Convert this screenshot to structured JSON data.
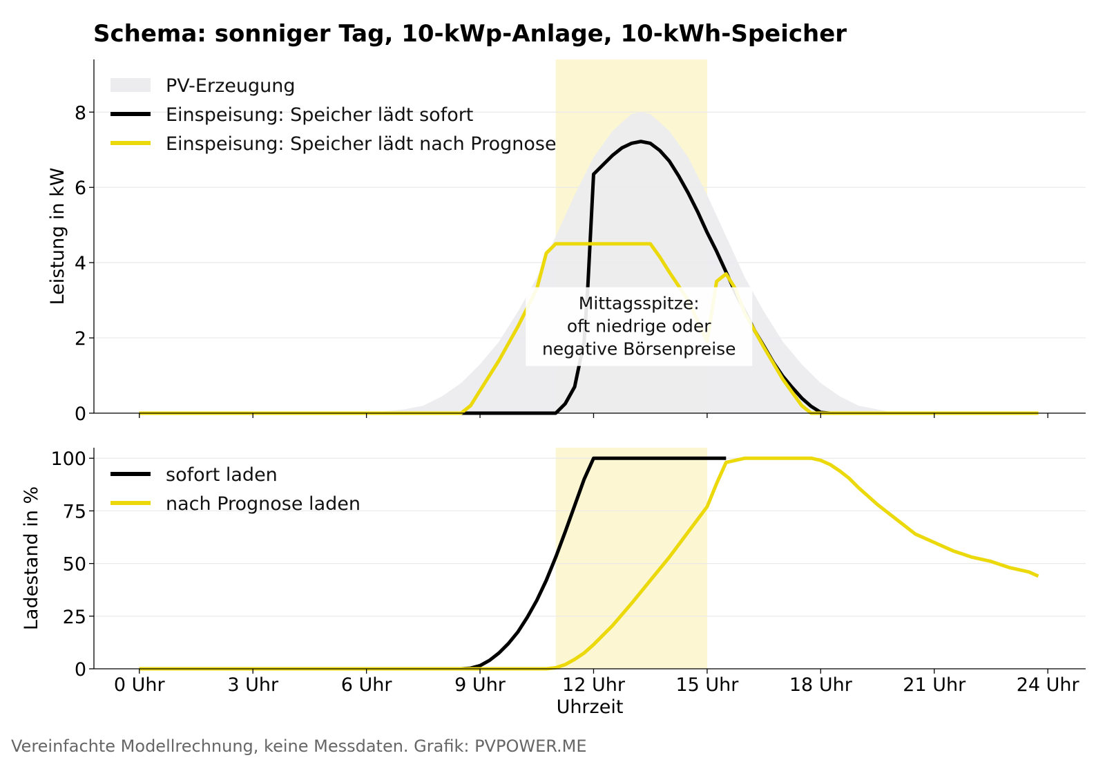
{
  "title": "Schema: sonniger Tag, 10-kWp-Anlage, 10-kWh-Speicher",
  "footer": "Vereinfachte Modellrechnung, keine Messdaten. Grafik: PVPOWER.ME",
  "colors": {
    "pv_fill": "#ececef",
    "black": "#000000",
    "yellow": "#ecd90c",
    "window": "#fcf7d2",
    "grid": "#e9e9e9"
  },
  "highlight_window": [
    11,
    15
  ],
  "chart_data": [
    {
      "type": "area",
      "ylabel": "Leistung in kW",
      "ylim": [
        0,
        9.4
      ],
      "yticks": [
        0,
        2,
        4,
        6,
        8
      ],
      "grid": true,
      "legend": "top-left",
      "annotation": {
        "lines": [
          "Mittagsspitze:",
          "oft niedrige oder",
          "negative Börsenpreise"
        ],
        "x": 13.2,
        "y": 2.3
      },
      "series": [
        {
          "name": "PV-Erzeugung",
          "style": "area",
          "color": "#ececef",
          "x": [
            0,
            6,
            7,
            7.5,
            8,
            8.5,
            9,
            9.5,
            10,
            10.5,
            11,
            11.5,
            12,
            12.5,
            13,
            13.25,
            13.5,
            14,
            14.5,
            15,
            15.5,
            16,
            16.5,
            17,
            17.5,
            18,
            18.5,
            19,
            20,
            24
          ],
          "y": [
            0,
            0,
            0.1,
            0.2,
            0.45,
            0.8,
            1.3,
            1.9,
            2.7,
            3.6,
            4.7,
            5.8,
            6.8,
            7.5,
            7.95,
            8.0,
            7.95,
            7.5,
            6.8,
            5.8,
            4.7,
            3.6,
            2.7,
            1.9,
            1.3,
            0.8,
            0.45,
            0.2,
            0,
            0
          ]
        },
        {
          "name": "Einspeisung: Speicher lädt sofort",
          "style": "line",
          "color": "#000000",
          "x": [
            0,
            8.5,
            9,
            10,
            11,
            11.25,
            11.5,
            11.75,
            11.85,
            12,
            12.25,
            12.5,
            12.75,
            13,
            13.25,
            13.5,
            13.75,
            14,
            14.25,
            14.5,
            14.75,
            15,
            15.25,
            15.5,
            15.75,
            16,
            16.25,
            16.5,
            16.75,
            17,
            17.25,
            17.5,
            17.75,
            18,
            18.25,
            18.5,
            18.75,
            19,
            19.5,
            20,
            21,
            22,
            23,
            23.75
          ],
          "y": [
            0,
            0,
            0,
            0,
            0,
            0.25,
            0.7,
            1.9,
            3.4,
            6.35,
            6.6,
            6.85,
            7.05,
            7.17,
            7.22,
            7.17,
            6.98,
            6.7,
            6.3,
            5.85,
            5.35,
            4.8,
            4.3,
            3.75,
            3.2,
            2.7,
            2.2,
            1.78,
            1.35,
            0.98,
            0.68,
            0.4,
            0.18,
            0.02,
            0,
            0,
            0,
            0,
            0,
            0,
            0,
            0,
            0,
            0
          ]
        },
        {
          "name": "Einspeisung: Speicher lädt nach Prognose",
          "style": "line",
          "color": "#ecd90c",
          "x": [
            0,
            8.5,
            8.75,
            9,
            9.5,
            10,
            10.5,
            10.75,
            11,
            11.5,
            12,
            12.5,
            13,
            13.5,
            13.75,
            14,
            14.5,
            15,
            15.25,
            15.5,
            15.75,
            16,
            16.5,
            17,
            17.5,
            17.75,
            18,
            19,
            20,
            21,
            22,
            23,
            23.75
          ],
          "y": [
            0,
            0,
            0.2,
            0.6,
            1.4,
            2.3,
            3.3,
            4.25,
            4.5,
            4.5,
            4.5,
            4.5,
            4.5,
            4.5,
            4.15,
            3.75,
            3.0,
            1.9,
            3.5,
            3.7,
            3.3,
            2.65,
            1.75,
            0.9,
            0.2,
            0,
            0,
            0,
            0,
            0,
            0,
            0,
            0
          ]
        }
      ]
    },
    {
      "type": "line",
      "xlabel": "Uhrzeit",
      "ylabel": "Ladestand in %",
      "ylim": [
        0,
        105
      ],
      "yticks": [
        0,
        25,
        50,
        75,
        100
      ],
      "xlim": [
        -1.2,
        25
      ],
      "xticks": [
        0,
        3,
        6,
        9,
        12,
        15,
        18,
        21,
        24
      ],
      "xticklabels": [
        "0 Uhr",
        "3 Uhr",
        "6 Uhr",
        "9 Uhr",
        "12 Uhr",
        "15 Uhr",
        "18 Uhr",
        "21 Uhr",
        "24 Uhr"
      ],
      "grid": true,
      "legend": "top-left",
      "series": [
        {
          "name": "sofort laden",
          "color": "#000000",
          "x": [
            0,
            8.5,
            8.75,
            9,
            9.25,
            9.5,
            9.75,
            10,
            10.25,
            10.5,
            10.75,
            11,
            11.25,
            11.5,
            11.75,
            12,
            12.5,
            13,
            14,
            15,
            15.25,
            15.5
          ],
          "y": [
            0,
            0,
            0.3,
            1.5,
            4,
            7.5,
            12,
            17.5,
            24.5,
            32.5,
            42,
            53,
            65,
            77.5,
            90,
            100,
            100,
            100,
            100,
            100,
            100,
            100
          ]
        },
        {
          "name": "nach Prognose laden",
          "color": "#ecd90c",
          "x": [
            0,
            10.75,
            11,
            11.25,
            11.5,
            11.75,
            12,
            12.5,
            13,
            13.5,
            14,
            14.5,
            15,
            15.25,
            15.5,
            16,
            17,
            17.5,
            17.75,
            18,
            18.25,
            18.5,
            18.75,
            19,
            19.5,
            20,
            20.5,
            21,
            21.5,
            22,
            22.5,
            23,
            23.5,
            23.75
          ],
          "y": [
            0,
            0,
            0.5,
            2,
            4.5,
            7.5,
            11.5,
            20.5,
            31,
            42,
            53,
            65,
            77,
            88,
            98,
            100,
            100,
            100,
            100,
            99,
            97,
            94,
            90.5,
            86,
            78,
            71,
            64,
            60,
            56,
            53,
            51,
            48,
            46,
            44
          ]
        }
      ]
    }
  ]
}
